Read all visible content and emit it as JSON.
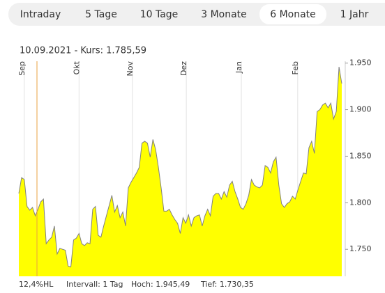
{
  "tabs": [
    "Intraday",
    "5 Tage",
    "10 Tage",
    "3 Monate",
    "6 Monate",
    "1 Jahr"
  ],
  "selected_tab": 4,
  "chart_data": {
    "type": "area",
    "subtitle": "10.09.2021  -  Kurs: 1.785,59",
    "color": "#ffff00",
    "line_color": "#808080",
    "values": [
      1810,
      1827,
      1825,
      1796,
      1792,
      1795,
      1786,
      1793,
      1801,
      1804,
      1756,
      1760,
      1763,
      1775,
      1745,
      1751,
      1750,
      1749,
      1732,
      1731,
      1760,
      1762,
      1767,
      1756,
      1754,
      1757,
      1756,
      1793,
      1796,
      1765,
      1763,
      1775,
      1786,
      1797,
      1808,
      1790,
      1797,
      1784,
      1790,
      1775,
      1816,
      1822,
      1827,
      1832,
      1838,
      1864,
      1866,
      1864,
      1849,
      1868,
      1857,
      1838,
      1816,
      1791,
      1791,
      1793,
      1787,
      1782,
      1778,
      1767,
      1784,
      1778,
      1787,
      1775,
      1784,
      1786,
      1787,
      1775,
      1786,
      1793,
      1786,
      1807,
      1810,
      1810,
      1804,
      1812,
      1806,
      1819,
      1823,
      1812,
      1804,
      1795,
      1793,
      1799,
      1808,
      1825,
      1819,
      1817,
      1816,
      1819,
      1840,
      1838,
      1832,
      1844,
      1849,
      1819,
      1799,
      1795,
      1799,
      1801,
      1807,
      1804,
      1814,
      1823,
      1832,
      1831,
      1859,
      1866,
      1853,
      1898,
      1900,
      1905,
      1907,
      1902,
      1907,
      1890,
      1898,
      1946,
      1928
    ],
    "xlim": [
      0,
      118
    ],
    "xticks": [
      {
        "value": 2,
        "label": "Sep"
      },
      {
        "value": 22,
        "label": "Okt"
      },
      {
        "value": 41.5,
        "label": "Nov"
      },
      {
        "value": 61.2,
        "label": "Dez"
      },
      {
        "value": 81.3,
        "label": "Jan"
      },
      {
        "value": 101.9,
        "label": "Feb"
      }
    ],
    "ylim": [
      1721,
      1952
    ],
    "yticks": [
      {
        "value": 1750,
        "label": "1.750"
      },
      {
        "value": 1800,
        "label": "1.800"
      },
      {
        "value": 1850,
        "label": "1.850"
      },
      {
        "value": 1900,
        "label": "1.900"
      },
      {
        "value": 1950,
        "label": "1.950"
      }
    ],
    "grid": true,
    "footer": [
      "12,4%HL",
      "Intervall: 1 Tag",
      "Hoch: 1.945,49",
      "Tief: 1.730,35"
    ]
  }
}
